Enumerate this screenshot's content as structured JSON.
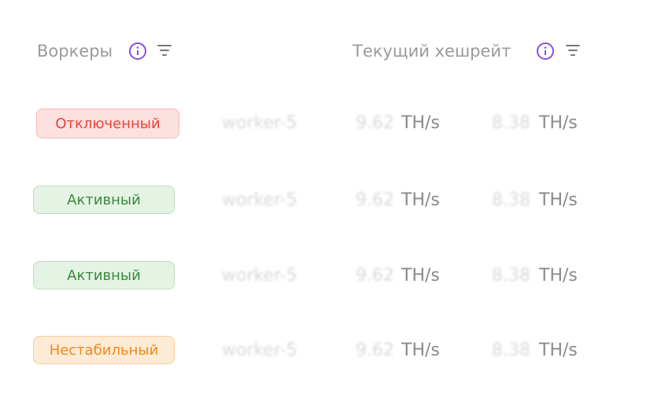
{
  "header": {
    "columns": [
      "Воркеры",
      "Текущий хешрейт"
    ]
  },
  "table": {
    "rows": [
      [
        "Отключенный",
        "worker-5",
        "9.62",
        "TH/s",
        "8.38",
        "TH/s"
      ],
      [
        "Активный",
        "worker-5",
        "9.62",
        "TH/s",
        "8.38",
        "TH/s"
      ],
      [
        "Активный",
        "worker-5",
        "9.62",
        "TH/s",
        "8.38",
        "TH/s"
      ],
      [
        "Нестабильный",
        "worker-5",
        "9.62",
        "TH/s",
        "8.38",
        "TH/s"
      ]
    ]
  }
}
